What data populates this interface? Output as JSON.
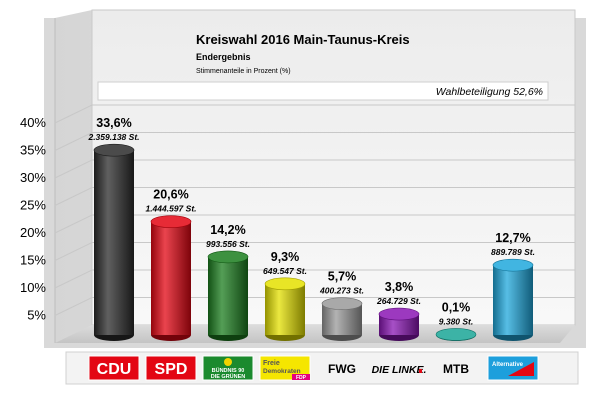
{
  "chart_data": {
    "type": "bar",
    "title": "Kreiswahl 2016 Main-Taunus-Kreis",
    "subtitle": "Endergebnis",
    "caption": "Stimmenanteile in Prozent (%)",
    "annotation": "Wahlbeteiligung 52,6%",
    "ylim": [
      0,
      40
    ],
    "yticks": [
      "5%",
      "10%",
      "15%",
      "20%",
      "25%",
      "30%",
      "35%",
      "40%"
    ],
    "ytick_values": [
      5,
      10,
      15,
      20,
      25,
      30,
      35,
      40
    ],
    "grid": true,
    "categories": [
      "CDU",
      "SPD",
      "BÜNDNIS 90 DIE GRÜNEN",
      "Freie Demokraten FDP",
      "FWG",
      "DIE LINKE.",
      "MTB",
      "Alternative für Deutschland"
    ],
    "values": [
      33.6,
      20.6,
      14.2,
      9.3,
      5.7,
      3.8,
      0.1,
      12.7
    ],
    "value_labels": [
      "33,6%",
      "20,6%",
      "14,2%",
      "9,3%",
      "5,7%",
      "3,8%",
      "0,1%",
      "12,7%"
    ],
    "votes": [
      "2.359.138 St.",
      "1.444.597 St.",
      "993.556 St.",
      "649.547 St.",
      "400.273 St.",
      "264.729 St.",
      "9.380 St.",
      "889.789 St."
    ],
    "colors": [
      "#2b2b2b",
      "#e30613",
      "#1b7d1e",
      "#e4e000",
      "#9a9a9a",
      "#8a16b4",
      "#1aa596",
      "#1fa8dc"
    ]
  },
  "logos": [
    {
      "name": "cdu-logo",
      "text": "CDU",
      "bg": "#e30613",
      "fg": "#ffffff"
    },
    {
      "name": "spd-logo",
      "text": "SPD",
      "bg": "#e30613",
      "fg": "#ffffff"
    },
    {
      "name": "gruene-logo",
      "line1": "BÜNDNIS 90",
      "line2": "DIE GRÜNEN",
      "bg": "#1b8a2e",
      "fg": "#ffffff",
      "accent": "#f2d400"
    },
    {
      "name": "fdp-logo",
      "line1": "Freie",
      "line2": "Demokraten",
      "tag": "FDP",
      "bg": "#f5e600",
      "fg": "#ffffff",
      "accent": "#e5007d"
    },
    {
      "name": "fwg-logo",
      "text": "FWG",
      "fg": "#000000"
    },
    {
      "name": "linke-logo",
      "text": "DIE LINKE.",
      "fg": "#000000",
      "accent": "#e30613"
    },
    {
      "name": "mtb-logo",
      "text": "MTB",
      "fg": "#000000"
    },
    {
      "name": "afd-logo",
      "text": "Alternative",
      "bg": "#1d9fdc",
      "fg": "#ffffff",
      "accent": "#e30613"
    }
  ]
}
